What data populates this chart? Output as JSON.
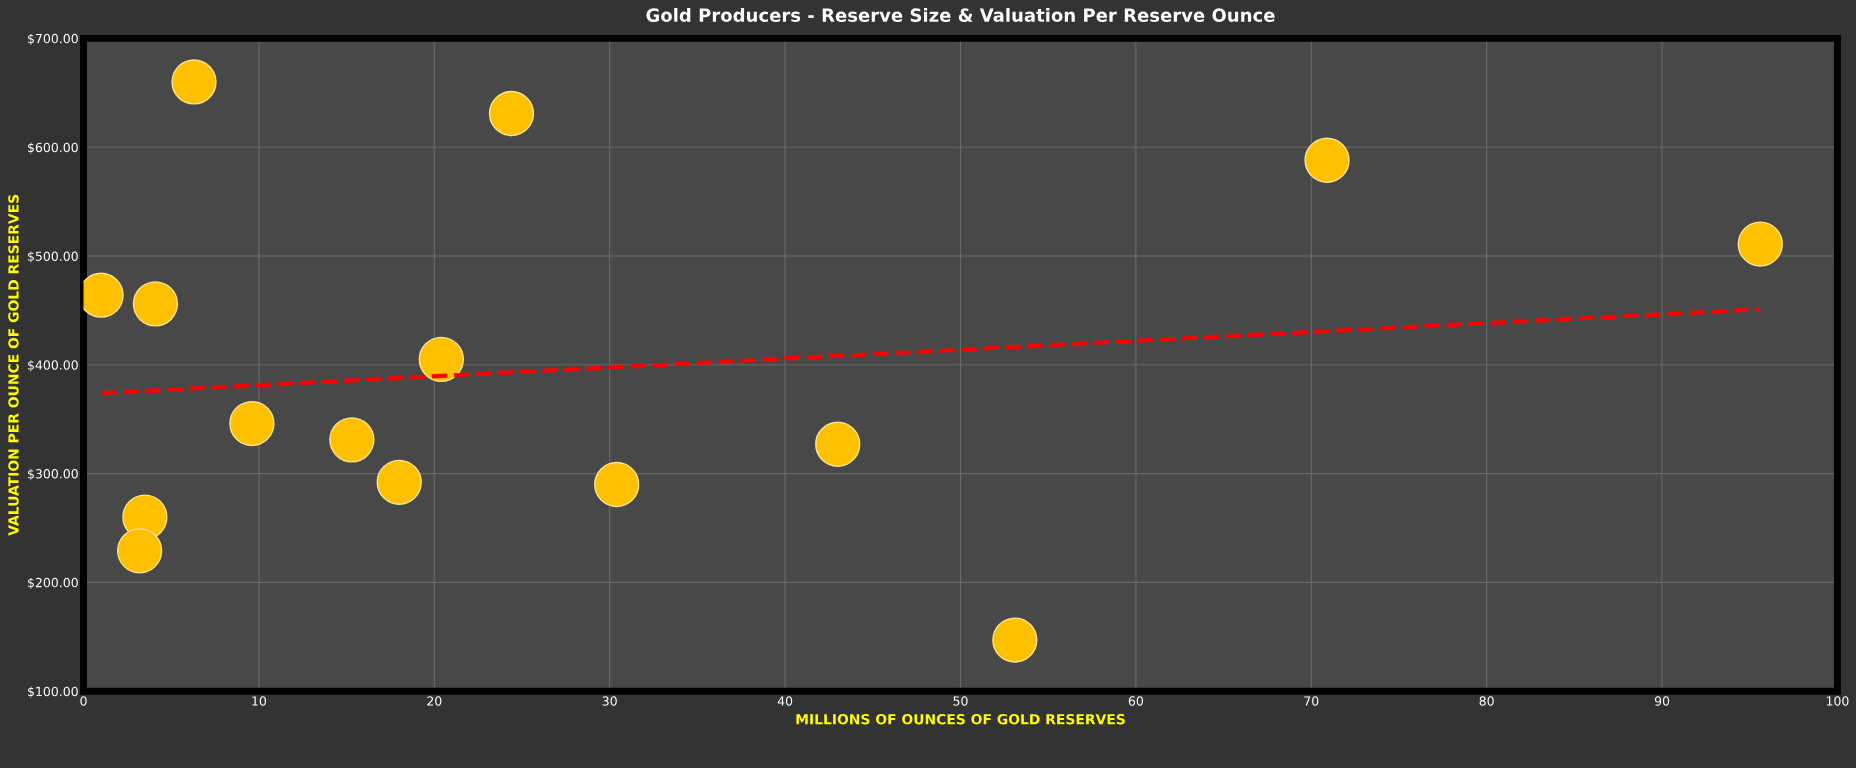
{
  "chart_data": {
    "type": "scatter",
    "title": "Gold Producers - Reserve Size & Valuation Per Reserve Ounce",
    "xlabel": "MILLIONS OF OUNCES OF GOLD RESERVES",
    "ylabel": "VALUATION PER OUNCE OF GOLD RESERVES",
    "xlim": [
      0,
      100
    ],
    "xticks": [
      0,
      10,
      20,
      30,
      40,
      50,
      60,
      70,
      80,
      90,
      100
    ],
    "ylim": [
      100,
      700
    ],
    "yticks": [
      {
        "value": 100,
        "label": "$100.00"
      },
      {
        "value": 200,
        "label": "$200.00"
      },
      {
        "value": 300,
        "label": "$300.00"
      },
      {
        "value": 400,
        "label": "$400.00"
      },
      {
        "value": 500,
        "label": "$500.00"
      },
      {
        "value": 600,
        "label": "$600.00"
      },
      {
        "value": 700,
        "label": "$700.00"
      }
    ],
    "grid": true,
    "marker": "circle",
    "series": [
      {
        "color": "#ffc000",
        "x": [
          6.3,
          24.4,
          70.9,
          95.6,
          1.0,
          4.1,
          20.4,
          9.6,
          15.3,
          18.0,
          30.4,
          43.0,
          3.5,
          3.2,
          53.1
        ],
        "values": [
          660,
          631,
          588,
          511,
          464,
          456,
          405,
          346,
          331,
          292,
          290,
          327,
          260,
          229,
          147
        ]
      },
      {
        "type": "line",
        "color": "#ff0000",
        "line_style": "dashed",
        "marker": "none",
        "x": [
          1.0,
          95.6
        ],
        "values": [
          374,
          451
        ]
      }
    ]
  }
}
